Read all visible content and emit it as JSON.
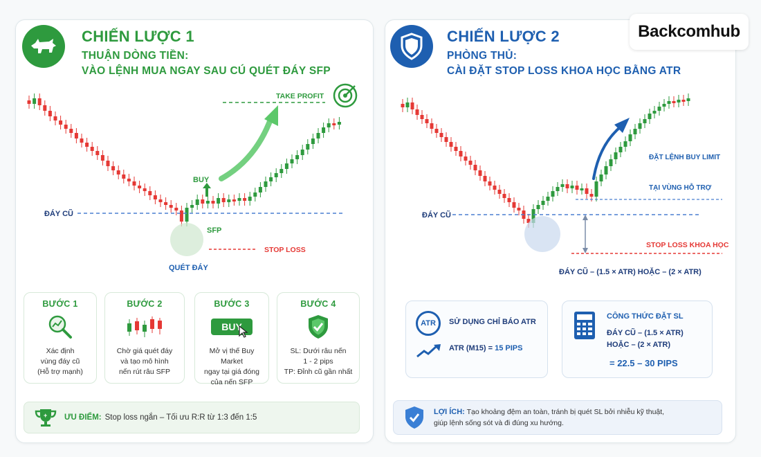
{
  "brand": {
    "logo_text": "Backcomhub"
  },
  "colors": {
    "green": "#2e9a3e",
    "blue": "#1e5fb0",
    "red": "#e53935",
    "candle_up": "#2e9a3e",
    "candle_down": "#e53935"
  },
  "strategy1": {
    "title": "CHIẾN LƯỢC 1",
    "subtitle1": "THUẬN DÒNG TIỀN:",
    "subtitle2": "VÀO LỆNH MUA NGAY SAU CÚ QUÉT ĐÁY SFP",
    "icon": "bull-icon",
    "chart": {
      "take_profit_label": "TAKE PROFIT",
      "buy_label": "BUY",
      "old_low_label": "ĐÁY CŨ",
      "sfp_label": "SFP",
      "stop_loss_label": "STOP LOSS",
      "sweep_label": "QUÉT ĐÁY"
    },
    "steps": [
      {
        "title": "BƯỚC 1",
        "lines": [
          "Xác định",
          "vùng đáy cũ",
          "(Hỗ trợ mạnh)"
        ],
        "icon": "magnifier-chart-icon"
      },
      {
        "title": "BƯỚC 2",
        "lines": [
          "Chờ giá quét đáy",
          "và tạo mô hình",
          "nến rút râu SFP"
        ],
        "icon": "candles-icon"
      },
      {
        "title": "BƯỚC 3",
        "button_text": "BUY",
        "lines": [
          "Mở vị thế Buy Market",
          "ngay tại giá đóng",
          "của nến SFP"
        ],
        "icon": "buy-button-icon"
      },
      {
        "title": "BƯỚC 4",
        "lines": [
          "SL: Dưới râu nến",
          "1 - 2 pips",
          "TP: Đỉnh cũ gần nhất"
        ],
        "icon": "shield-check-icon"
      }
    ],
    "advantage_label": "ƯU ĐIỂM:",
    "advantage_text": "Stop loss ngắn – Tối ưu R:R từ 1:3 đến 1:5",
    "advantage_icon": "trophy-icon"
  },
  "strategy2": {
    "title": "CHIẾN LƯỢC 2",
    "subtitle1": "PHÒNG THỦ:",
    "subtitle2": "CÀI ĐẶT STOP LOSS KHOA HỌC BẰNG ATR",
    "icon": "shield-icon",
    "chart": {
      "limit_label_1": "ĐẶT LỆNH BUY LIMIT",
      "limit_label_2": "TẠI VÙNG HỖ TRỢ",
      "old_low_label": "ĐÁY CŨ",
      "stop_loss_label": "STOP LOSS KHOA HỌC",
      "formula_label": "ĐÁY CŨ – (1.5 × ATR) HOẶC – (2 × ATR)"
    },
    "atr_box": {
      "badge": "ATR",
      "title": "SỬ DỤNG CHỈ BÁO ATR",
      "value_label": "ATR (M15) =",
      "value": "15 PIPS"
    },
    "formula_box": {
      "title": "CÔNG THỨC ĐẶT SL",
      "line1": "ĐÁY CŨ – (1.5 × ATR)",
      "line2": "HOẶC – (2 × ATR)",
      "result": "= 22.5 – 30 PIPS",
      "icon": "calculator-icon"
    },
    "benefit_label": "LỢI ÍCH:",
    "benefit_line1": "Tạo khoảng đệm an toàn, tránh bị quét SL bởi nhiễu kỹ thuật,",
    "benefit_line2": "giúp lệnh sống sót và đi đúng xu hướng.",
    "benefit_icon": "shield-check-icon"
  }
}
